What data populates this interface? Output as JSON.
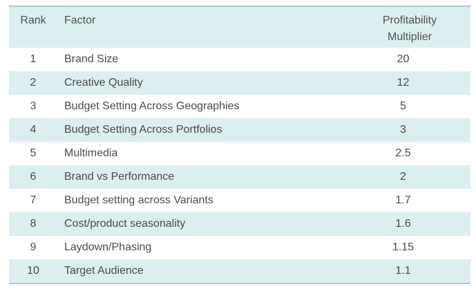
{
  "table": {
    "headers": {
      "rank": "Rank",
      "factor": "Factor",
      "multiplier_line1": "Profitability",
      "multiplier_line2": "Multiplier"
    },
    "rows": [
      {
        "rank": "1",
        "factor": "Brand Size",
        "multiplier": "20"
      },
      {
        "rank": "2",
        "factor": "Creative Quality",
        "multiplier": "12"
      },
      {
        "rank": "3",
        "factor": "Budget Setting Across Geographies",
        "multiplier": "5"
      },
      {
        "rank": "4",
        "factor": "Budget Setting Across Portfolios",
        "multiplier": "3"
      },
      {
        "rank": "5",
        "factor": "Multimedia",
        "multiplier": "2.5"
      },
      {
        "rank": "6",
        "factor": "Brand vs Performance",
        "multiplier": "2"
      },
      {
        "rank": "7",
        "factor": "Budget setting across Variants",
        "multiplier": "1.7"
      },
      {
        "rank": "8",
        "factor": "Cost/product seasonality",
        "multiplier": "1.6"
      },
      {
        "rank": "9",
        "factor": "Laydown/Phasing",
        "multiplier": "1.15"
      },
      {
        "rank": "10",
        "factor": "Target Audience",
        "multiplier": "1.1"
      }
    ]
  },
  "colors": {
    "stripe": "#dbeef0",
    "rule": "#a9c9cc",
    "text": "#4a4a4a"
  }
}
